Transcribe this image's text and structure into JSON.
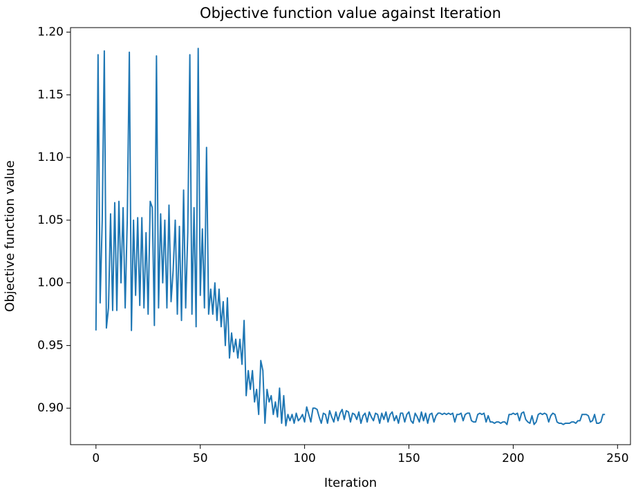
{
  "chart_data": {
    "type": "line",
    "title": "Objective function value against Iteration",
    "xlabel": "Iteration",
    "ylabel": "Objective function value",
    "xlim": [
      -12.2,
      256.2
    ],
    "ylim": [
      0.8709,
      1.2036
    ],
    "xticks": [
      0,
      50,
      100,
      150,
      200,
      250
    ],
    "yticks": [
      {
        "value": 0.9,
        "label": "0.90"
      },
      0.95,
      {
        "value": 1.0,
        "label": "1.00"
      },
      1.05,
      {
        "value": 1.1,
        "label": "1.10"
      },
      1.15,
      {
        "value": 1.2,
        "label": "1.20"
      }
    ],
    "grid": false,
    "series": [
      {
        "color": "#1f77b4",
        "x": [
          0,
          1,
          2,
          3,
          4,
          5,
          6,
          7,
          8,
          9,
          10,
          11,
          12,
          13,
          14,
          15,
          16,
          17,
          18,
          19,
          20,
          21,
          22,
          23,
          24,
          25,
          26,
          27,
          28,
          29,
          30,
          31,
          32,
          33,
          34,
          35,
          36,
          37,
          38,
          39,
          40,
          41,
          42,
          43,
          44,
          45,
          46,
          47,
          48,
          49,
          50,
          51,
          52,
          53,
          54,
          55,
          56,
          57,
          58,
          59,
          60,
          61,
          62,
          63,
          64,
          65,
          66,
          67,
          68,
          69,
          70,
          71,
          72,
          73,
          74,
          75,
          76,
          77,
          78,
          79,
          80,
          81,
          82,
          83,
          84,
          85,
          86,
          87,
          88,
          89,
          90,
          91,
          92,
          93,
          94,
          95,
          96,
          97,
          98,
          99,
          100,
          101,
          102,
          103,
          104,
          105,
          106,
          107,
          108,
          109,
          110,
          111,
          112,
          113,
          114,
          115,
          116,
          117,
          118,
          119,
          120,
          121,
          122,
          123,
          124,
          125,
          126,
          127,
          128,
          129,
          130,
          131,
          132,
          133,
          134,
          135,
          136,
          137,
          138,
          139,
          140,
          141,
          142,
          143,
          144,
          145,
          146,
          147,
          148,
          149,
          150,
          151,
          152,
          153,
          154,
          155,
          156,
          157,
          158,
          159,
          160,
          161,
          162,
          163,
          164,
          165,
          166,
          167,
          168,
          169,
          170,
          171,
          172,
          173,
          174,
          175,
          176,
          177,
          178,
          179,
          180,
          181,
          182,
          183,
          184,
          185,
          186,
          187,
          188,
          189,
          190,
          191,
          192,
          193,
          194,
          195,
          196,
          197,
          198,
          199,
          200,
          201,
          202,
          203,
          204,
          205,
          206,
          207,
          208,
          209,
          210,
          211,
          212,
          213,
          214,
          215,
          216,
          217,
          218,
          219,
          220,
          221,
          222,
          223,
          224,
          225,
          226,
          227,
          228,
          229,
          230,
          231,
          232,
          233,
          234,
          235,
          236,
          237,
          238,
          239,
          240,
          241,
          242,
          243,
          244
        ],
        "values": [
          0.962,
          1.182,
          0.984,
          1.05,
          1.185,
          0.964,
          0.98,
          1.055,
          0.978,
          1.064,
          0.978,
          1.065,
          1.0,
          1.06,
          0.98,
          1.05,
          1.184,
          0.962,
          1.05,
          0.99,
          1.052,
          0.982,
          1.052,
          0.98,
          1.04,
          0.975,
          1.065,
          1.06,
          0.966,
          1.181,
          0.98,
          1.055,
          1.0,
          1.05,
          0.98,
          1.062,
          0.985,
          1.01,
          1.05,
          0.975,
          1.045,
          0.97,
          1.074,
          0.98,
          1.04,
          1.182,
          0.975,
          1.06,
          0.965,
          1.187,
          0.99,
          1.043,
          0.98,
          1.108,
          0.975,
          0.995,
          0.975,
          1.0,
          0.97,
          0.995,
          0.965,
          0.985,
          0.95,
          0.988,
          0.94,
          0.96,
          0.945,
          0.955,
          0.94,
          0.955,
          0.935,
          0.97,
          0.91,
          0.93,
          0.915,
          0.93,
          0.905,
          0.915,
          0.895,
          0.938,
          0.93,
          0.888,
          0.915,
          0.905,
          0.91,
          0.895,
          0.905,
          0.893,
          0.916,
          0.888,
          0.91,
          0.886,
          0.895,
          0.89,
          0.895,
          0.888,
          0.896,
          0.89,
          0.892,
          0.895,
          0.889,
          0.901,
          0.895,
          0.889,
          0.9,
          0.9,
          0.899,
          0.893,
          0.888,
          0.896,
          0.895,
          0.888,
          0.898,
          0.893,
          0.889,
          0.897,
          0.89,
          0.896,
          0.899,
          0.891,
          0.898,
          0.897,
          0.889,
          0.896,
          0.895,
          0.891,
          0.897,
          0.888,
          0.894,
          0.896,
          0.889,
          0.897,
          0.893,
          0.89,
          0.896,
          0.895,
          0.888,
          0.896,
          0.891,
          0.897,
          0.889,
          0.895,
          0.897,
          0.89,
          0.894,
          0.888,
          0.896,
          0.896,
          0.889,
          0.895,
          0.897,
          0.89,
          0.888,
          0.896,
          0.893,
          0.889,
          0.897,
          0.89,
          0.896,
          0.888,
          0.895,
          0.896,
          0.889,
          0.894,
          0.896,
          0.896,
          0.895,
          0.896,
          0.895,
          0.896,
          0.895,
          0.896,
          0.889,
          0.895,
          0.895,
          0.896,
          0.89,
          0.895,
          0.896,
          0.896,
          0.89,
          0.889,
          0.889,
          0.895,
          0.896,
          0.895,
          0.896,
          0.889,
          0.894,
          0.889,
          0.889,
          0.888,
          0.889,
          0.889,
          0.888,
          0.889,
          0.889,
          0.887,
          0.895,
          0.895,
          0.896,
          0.895,
          0.896,
          0.89,
          0.896,
          0.897,
          0.891,
          0.889,
          0.888,
          0.894,
          0.887,
          0.889,
          0.895,
          0.896,
          0.895,
          0.896,
          0.895,
          0.889,
          0.894,
          0.896,
          0.895,
          0.889,
          0.888,
          0.888,
          0.887,
          0.888,
          0.888,
          0.888,
          0.889,
          0.889,
          0.888,
          0.89,
          0.89,
          0.895,
          0.895,
          0.895,
          0.894,
          0.889,
          0.89,
          0.895,
          0.888,
          0.888,
          0.889,
          0.895,
          0.895
        ]
      }
    ]
  }
}
